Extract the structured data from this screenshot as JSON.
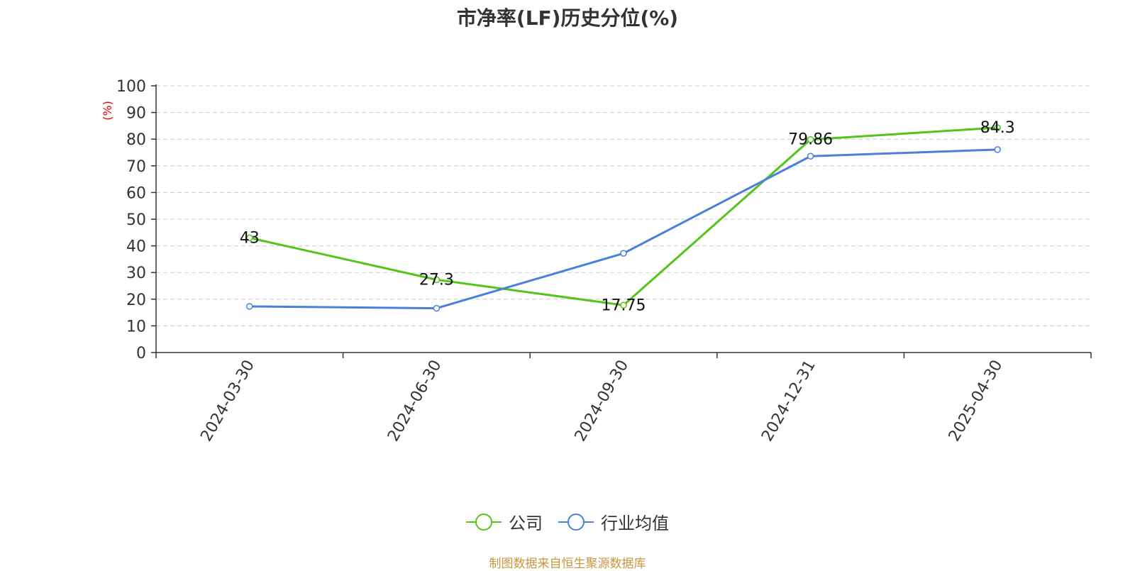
{
  "chart_data": {
    "type": "line",
    "title": "市净率(LF)历史分位(%)",
    "ylabel": "(%)",
    "ylim": [
      0,
      100
    ],
    "yticks": [
      0,
      10,
      20,
      30,
      40,
      50,
      60,
      70,
      80,
      90,
      100
    ],
    "categories": [
      "2024-03-30",
      "2024-06-30",
      "2024-09-30",
      "2024-12-31",
      "2025-04-30"
    ],
    "series": [
      {
        "name": "公司",
        "color": "#52c41a",
        "values": [
          43,
          27.3,
          17.75,
          79.86,
          84.3
        ],
        "labels": [
          "43",
          "27.3",
          "17.75",
          "79.86",
          "84.3"
        ]
      },
      {
        "name": "行业均值",
        "color": "#4a7fda",
        "values": [
          17.3,
          16.6,
          37.2,
          73.6,
          76.1
        ]
      }
    ],
    "grid": true,
    "legend_position": "bottom"
  },
  "source_note": "制图数据来自恒生聚源数据库",
  "colors": {
    "source_note": "#c8963e",
    "ylabel": "#e60000",
    "axis": "#333333",
    "grid": "#cccccc"
  }
}
